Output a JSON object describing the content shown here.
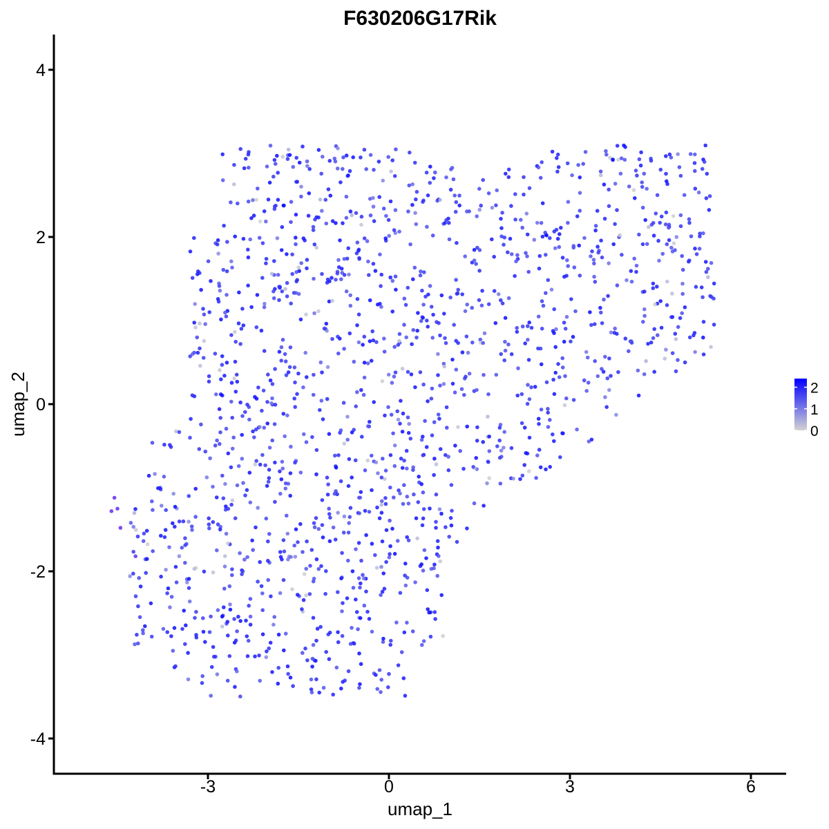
{
  "chart_data": {
    "type": "scatter",
    "title": "F630206G17Rik",
    "xlabel": "umap_1",
    "ylabel": "umap_2",
    "xlim": [
      -5.6,
      6.5
    ],
    "ylim": [
      -4.3,
      4.4
    ],
    "x_ticks": [
      -3,
      0,
      3,
      6
    ],
    "y_ticks": [
      -4,
      -2,
      0,
      2,
      4
    ],
    "x_tick_labels": [
      "-3",
      "0",
      "3",
      "6"
    ],
    "y_tick_labels": [
      "-4",
      "-2",
      "0",
      "2",
      "4"
    ],
    "grid": false,
    "legend": {
      "placement": "right",
      "type": "colorbar",
      "ticks": [
        0,
        1,
        2
      ],
      "tick_labels": [
        "0",
        "1",
        "2"
      ],
      "range": [
        0,
        2.4
      ],
      "colors": {
        "low": "#d3d3d3",
        "high": "#0000ff"
      }
    },
    "point_color_mid": "#7b4df0",
    "point_count_approx": 1600,
    "clusters": [
      {
        "region": "upper-left lobe",
        "x_range": [
          -3.3,
          1.2
        ],
        "y_range": [
          -0.2,
          3.2
        ]
      },
      {
        "region": "lower-left mass",
        "x_range": [
          -4.3,
          1.0
        ],
        "y_range": [
          -3.5,
          -0.5
        ]
      },
      {
        "region": "right band",
        "x_range": [
          0.5,
          5.4
        ],
        "y_range": [
          -2.0,
          3.1
        ]
      }
    ]
  }
}
